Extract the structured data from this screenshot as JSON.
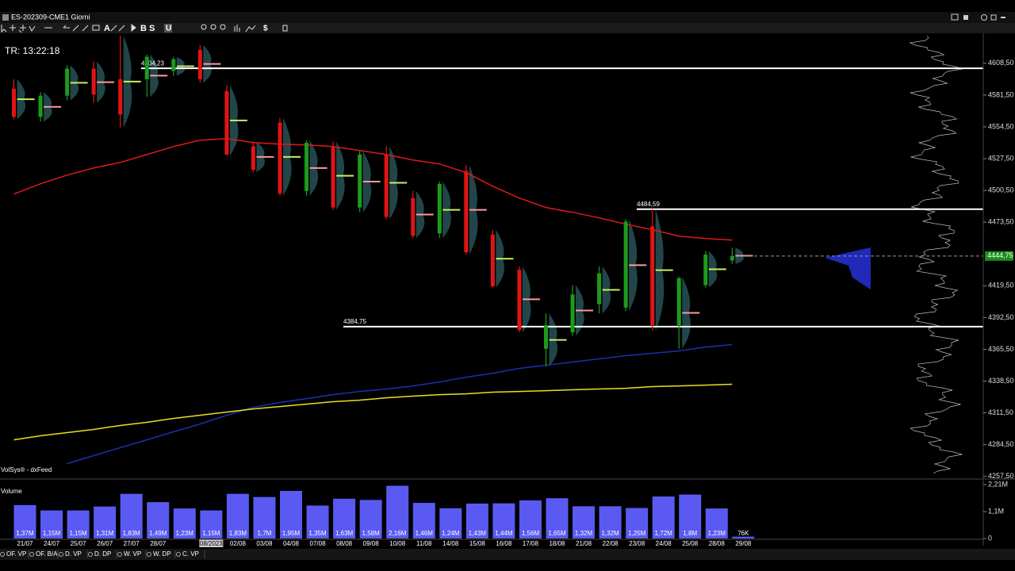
{
  "app": {
    "symbol": "ES-202309-CME",
    "interval": "1 Giorni",
    "timer": "TR: 13:22:18",
    "source": "VolSys® - dxFeed",
    "pane_title": "Volume",
    "tool_letters": [
      "A",
      "B",
      "S",
      "U",
      "$"
    ],
    "tabs": [
      "OF. VP",
      "OF. B/A",
      "D. VP",
      "D. DP",
      "W. VP",
      "W. DP",
      "C. VP"
    ]
  },
  "chart_data": [
    {
      "type": "candlestick",
      "open": [
        4587,
        4563,
        4581,
        4604,
        4595,
        4595,
        4602,
        4620,
        4585,
        4538,
        4558,
        4500,
        4538,
        4486,
        4531,
        4494,
        4464,
        4517,
        4463,
        4433,
        4366,
        4380,
        4404,
        4401,
        4470,
        4386,
        4420,
        4441
      ],
      "high": [
        4595,
        4584,
        4607,
        4610,
        4632,
        4616,
        4614,
        4624,
        4590,
        4542,
        4562,
        4543,
        4542,
        4534,
        4538,
        4500,
        4508,
        4522,
        4467,
        4436,
        4396,
        4420,
        4436,
        4476,
        4484.59,
        4427,
        4449,
        4452
      ],
      "low": [
        4561,
        4559,
        4577,
        4575,
        4554,
        4580,
        4598,
        4592,
        4530,
        4516,
        4496,
        4496,
        4484,
        4482,
        4476,
        4460,
        4460,
        4446,
        4418,
        4380,
        4351,
        4377,
        4396,
        4398,
        4381,
        4366,
        4418,
        4438
      ],
      "close": [
        4563,
        4581,
        4604,
        4582,
        4565,
        4614,
        4612,
        4595,
        4531,
        4518,
        4498,
        4541,
        4486,
        4531,
        4478,
        4462,
        4506,
        4448,
        4419,
        4382,
        4386,
        4412,
        4430,
        4474,
        4386,
        4426,
        4446,
        4444.75
      ],
      "up_color": "#1c9c1c",
      "down_color": "#e01414",
      "lines": [
        {
          "color": "#e01a1a",
          "values": [
            4497.4,
            4506.1,
            4513.5,
            4519.6,
            4524.3,
            4531,
            4537.8,
            4543.2,
            4544.5,
            4541.2,
            4539.8,
            4539.1,
            4537.8,
            4534.4,
            4531,
            4526.3,
            4523,
            4515.6,
            4504.1,
            4494,
            4486,
            4481.9,
            4477.2,
            4471.8,
            4467.1,
            4461.7,
            4459.7,
            4458.3
          ]
        },
        {
          "color": "#1a2fb0",
          "values": [
            null,
            null,
            4268.4,
            4275.2,
            4281.9,
            4288.6,
            4295.4,
            4302.1,
            4309.5,
            4316.2,
            4320.3,
            4323.6,
            4327,
            4329.7,
            4331.7,
            4334.4,
            4337.8,
            4341.8,
            4345.2,
            4349.3,
            4352,
            4354.7,
            4357.4,
            4360.1,
            4362.1,
            4364.1,
            4367.4,
            4369.5
          ]
        },
        {
          "color": "#e8e020",
          "values": [
            4288.6,
            4292,
            4294.7,
            4297.4,
            4300.8,
            4303.5,
            4306.8,
            4309.5,
            4312.2,
            4314.9,
            4316.9,
            4318.9,
            4321,
            4322.3,
            4324.3,
            4325.7,
            4327,
            4327.7,
            4329.1,
            4329.7,
            4330.4,
            4331.1,
            4331.8,
            4332.4,
            4333.8,
            4334.4,
            4335.1,
            4335.8
          ]
        }
      ],
      "levels": [
        {
          "value": 4604.23,
          "label": "4604,23"
        },
        {
          "value": 4484.59,
          "label": "4484,59"
        },
        {
          "value": 4384.75,
          "label": "4384,75"
        }
      ],
      "last_price": {
        "value": 4444.75,
        "label": "4444,75"
      },
      "ylim": [
        4258,
        4634
      ],
      "yticks": [
        {
          "value": 4608.5,
          "label": "4608,50"
        },
        {
          "value": 4581.5,
          "label": "4581,50"
        },
        {
          "value": 4554.5,
          "label": "4554,50"
        },
        {
          "value": 4527.5,
          "label": "4527,50"
        },
        {
          "value": 4500.5,
          "label": "4500,50"
        },
        {
          "value": 4473.5,
          "label": "4473,50"
        },
        {
          "value": 4419.5,
          "label": "4419,50"
        },
        {
          "value": 4392.5,
          "label": "4392,50"
        },
        {
          "value": 4365.5,
          "label": "4365,50"
        },
        {
          "value": 4338.5,
          "label": "4338,50"
        },
        {
          "value": 4311.5,
          "label": "4311,50"
        },
        {
          "value": 4284.5,
          "label": "4284,50"
        },
        {
          "value": 4257.5,
          "label": "4257,50"
        }
      ]
    },
    {
      "type": "bar",
      "categories": [
        "21/07",
        "24/07",
        "25/07",
        "26/07",
        "27/07",
        "28/07",
        null,
        "08/2023",
        "02/08",
        "03/08",
        "04/08",
        "07/08",
        "08/08",
        "09/08",
        "10/08",
        "11/08",
        "14/08",
        "15/08",
        "16/08",
        "17/08",
        "18/08",
        "21/08",
        "22/08",
        "23/08",
        "24/08",
        "25/08",
        "28/08",
        "29/08"
      ],
      "values": [
        1.37,
        1.15,
        1.15,
        1.31,
        1.83,
        1.49,
        1.23,
        1.15,
        1.83,
        1.7,
        1.95,
        1.35,
        1.63,
        1.58,
        2.16,
        1.46,
        1.24,
        1.43,
        1.44,
        1.56,
        1.65,
        1.32,
        1.32,
        1.25,
        1.72,
        1.8,
        1.23,
        0.076
      ],
      "value_labels": [
        "1,37M",
        "1,15M",
        "1,15M",
        "1,31M",
        "1,83M",
        "1,49M",
        "1,23M",
        "1,15M",
        "1,83M",
        "1,7M",
        "1,95M",
        "1,35M",
        "1,63M",
        "1,58M",
        "2,16M",
        "1,46M",
        "1,24M",
        "1,43M",
        "1,44M",
        "1,56M",
        "1,65M",
        "1,32M",
        "1,32M",
        "1,25M",
        "1,72M",
        "1,8M",
        "1,23M",
        "76K"
      ],
      "color": "#5a5af2",
      "ylim": [
        0,
        2.21
      ],
      "yticks": [
        {
          "value": 2.21,
          "label": "2,21M"
        },
        {
          "value": 1.1,
          "label": "1,1M"
        },
        0
      ]
    }
  ]
}
